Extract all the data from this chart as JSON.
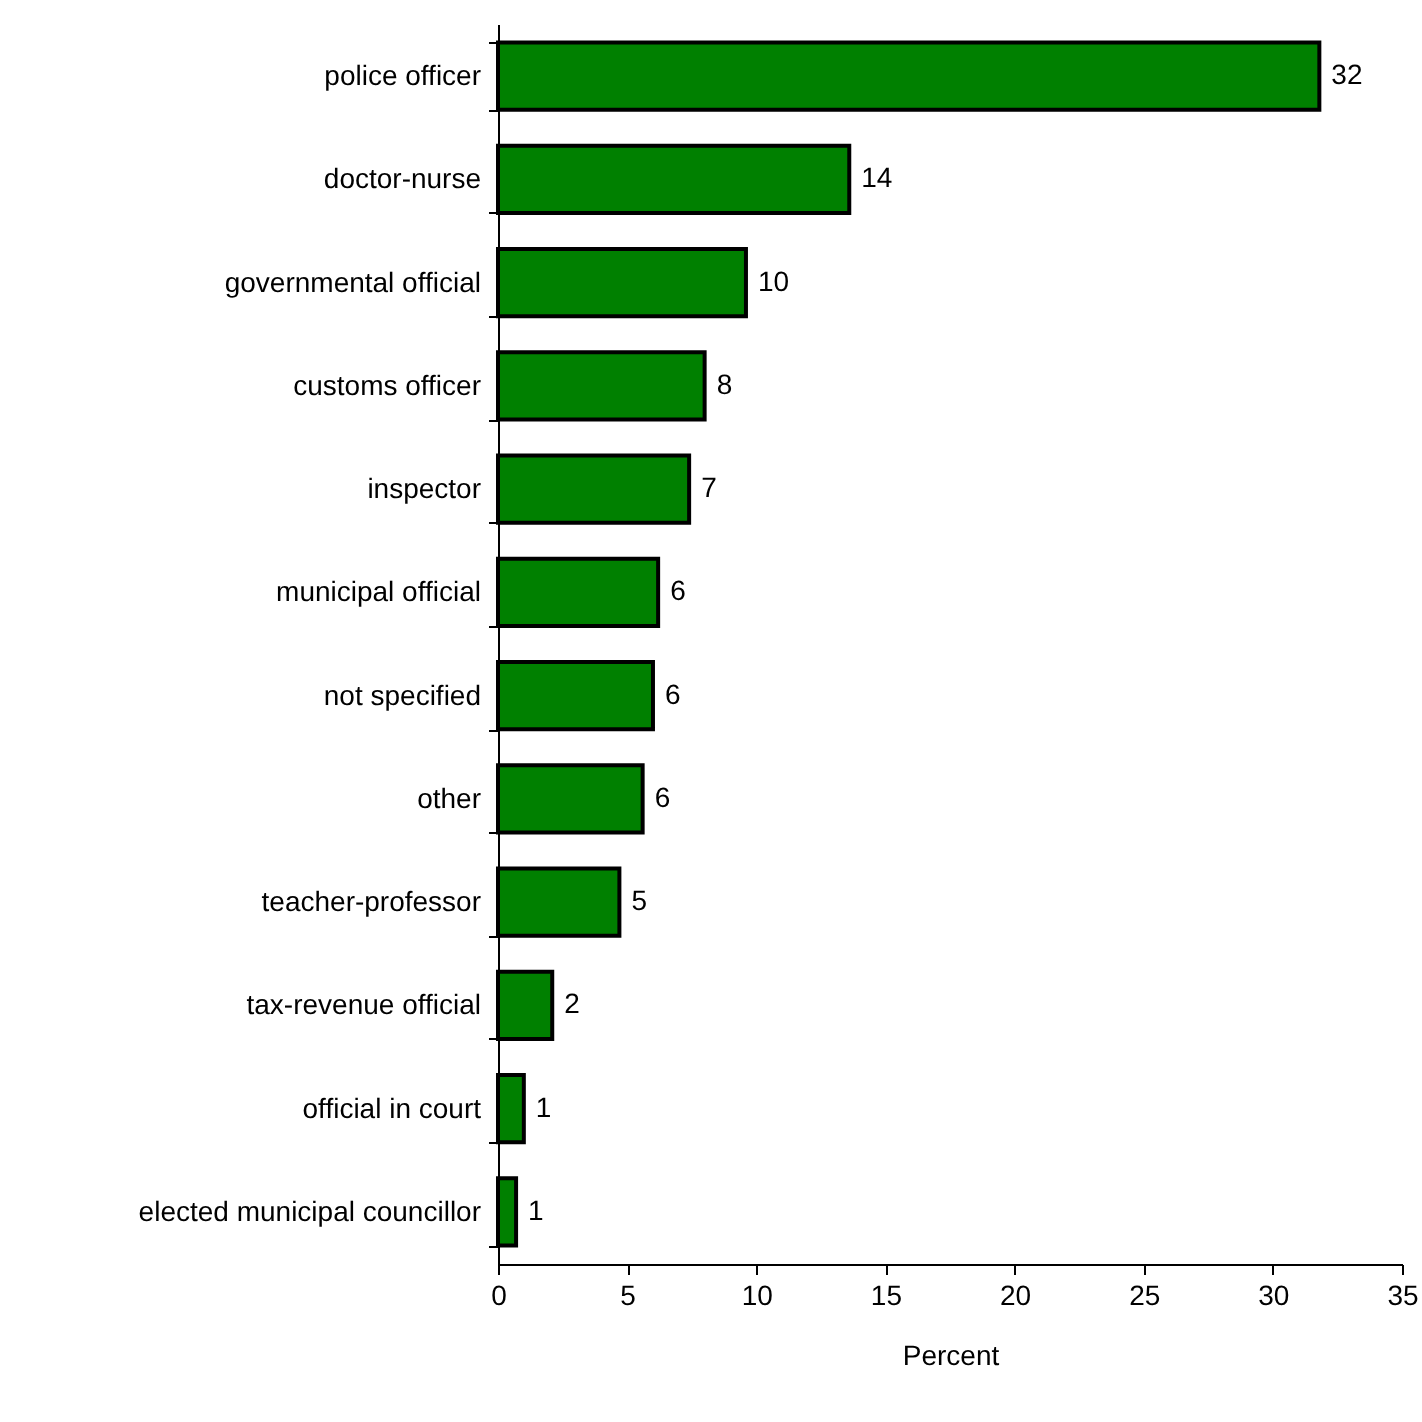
{
  "chart_data": {
    "type": "bar",
    "orientation": "horizontal",
    "xlabel": "Percent",
    "categories": [
      "police officer",
      "doctor-nurse",
      "governmental official",
      "customs officer",
      "inspector",
      "municipal official",
      "not specified",
      "other",
      "teacher-professor",
      "tax-revenue official",
      "official in court",
      "elected municipal councillor"
    ],
    "values": [
      31.8,
      13.6,
      9.6,
      8.0,
      7.4,
      6.2,
      6.0,
      5.6,
      4.7,
      2.1,
      1.0,
      0.7
    ],
    "value_labels": [
      "32",
      "14",
      "10",
      "8",
      "7",
      "6",
      "6",
      "6",
      "5",
      "2",
      "1",
      "1"
    ],
    "color": "#008000",
    "xlim": [
      0,
      35
    ],
    "xticks": [
      0,
      5,
      10,
      15,
      20,
      25,
      30,
      35
    ],
    "grid": false
  }
}
